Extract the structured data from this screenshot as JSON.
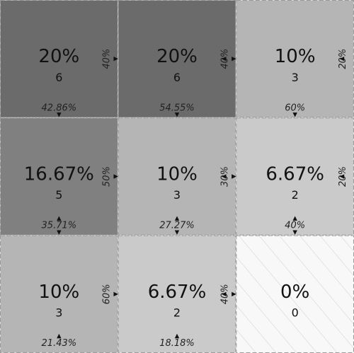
{
  "chart_data": {
    "type": "heatmap",
    "title": "",
    "xlabel": "",
    "ylabel": "",
    "rows": 3,
    "cols": 3,
    "counts": [
      [
        6,
        6,
        3
      ],
      [
        5,
        3,
        2
      ],
      [
        3,
        2,
        0
      ]
    ],
    "cell_percent_labels": [
      [
        "20%",
        "20%",
        "10%"
      ],
      [
        "16.67%",
        "10%",
        "6.67%"
      ],
      [
        "10%",
        "6.67%",
        "0%"
      ]
    ],
    "cell_count_labels": [
      [
        "6",
        "6",
        "3"
      ],
      [
        "5",
        "3",
        "2"
      ],
      [
        "3",
        "2",
        "0"
      ]
    ],
    "column_percent_labels": [
      [
        "42.86%",
        "54.55%",
        "60%"
      ],
      [
        "35.71%",
        "27.27%",
        "40%"
      ],
      [
        "21.43%",
        "18.18%",
        ""
      ]
    ],
    "row_percent_labels": [
      [
        "40%",
        "40%",
        "20%"
      ],
      [
        "50%",
        "30%",
        "20%"
      ],
      [
        "60%",
        "40%",
        ""
      ]
    ],
    "column_arrows": [
      [
        "down",
        "down",
        "down"
      ],
      [
        "updown",
        "updown",
        "updown"
      ],
      [
        "up",
        "up",
        ""
      ]
    ],
    "row_arrows": [
      [
        "right",
        "leftright",
        "left"
      ],
      [
        "right",
        "leftright",
        "left"
      ],
      [
        "right",
        "leftright",
        ""
      ]
    ],
    "cell_colors": [
      [
        "#6b6b6b",
        "#6b6b6b",
        "#b5b5b5"
      ],
      [
        "#808080",
        "#b5b5b5",
        "#cacaca"
      ],
      [
        "#b5b5b5",
        "#cacaca",
        "#f8f8f8"
      ]
    ],
    "zero_cell_hatched": true,
    "grid": true,
    "legend": "none"
  }
}
